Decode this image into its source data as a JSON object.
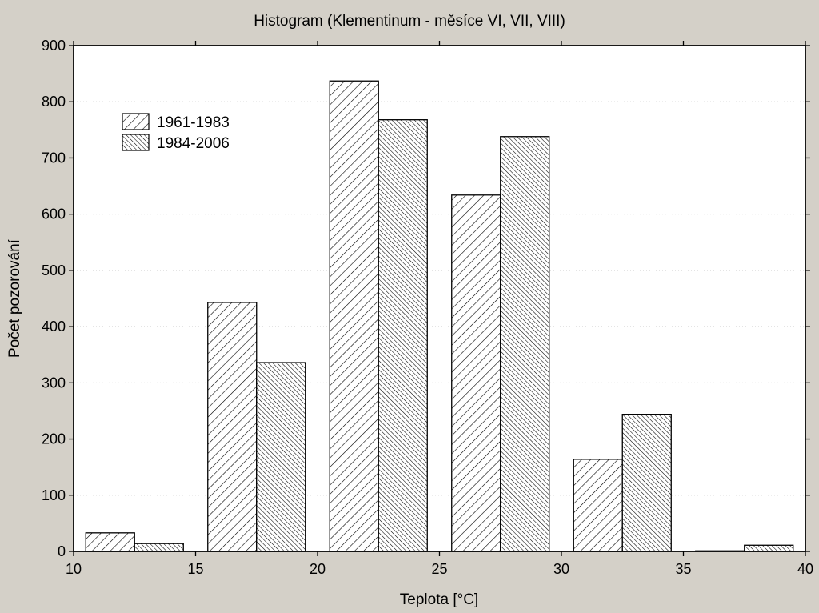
{
  "chart_data": {
    "type": "bar",
    "title": "Histogram (Klementinum - měsíce VI, VII, VIII)",
    "xlabel": "Teplota [°C]",
    "ylabel": "Počet pozorování",
    "xlim": [
      10,
      40
    ],
    "ylim": [
      0,
      900
    ],
    "xticks": [
      10,
      15,
      20,
      25,
      30,
      35,
      40
    ],
    "yticks": [
      0,
      100,
      200,
      300,
      400,
      500,
      600,
      700,
      800,
      900
    ],
    "grid": true,
    "legend_position": "top-left",
    "bins": [
      {
        "from": 10.5,
        "to": 14.5
      },
      {
        "from": 15.5,
        "to": 19.5
      },
      {
        "from": 20.5,
        "to": 24.5
      },
      {
        "from": 25.5,
        "to": 29.5
      },
      {
        "from": 30.5,
        "to": 34.5
      },
      {
        "from": 35.5,
        "to": 39.5
      }
    ],
    "series": [
      {
        "name": "1961-1983",
        "pattern": "hatch-wide",
        "values": [
          33,
          443,
          837,
          634,
          164,
          1
        ]
      },
      {
        "name": "1984-2006",
        "pattern": "hatch-dense",
        "values": [
          14,
          336,
          768,
          738,
          244,
          11
        ]
      }
    ]
  },
  "colors": {
    "background": "#d4d0c8",
    "plot_area": "#ffffff",
    "bar_outline": "#000000",
    "grid": "#b8b8b8"
  }
}
